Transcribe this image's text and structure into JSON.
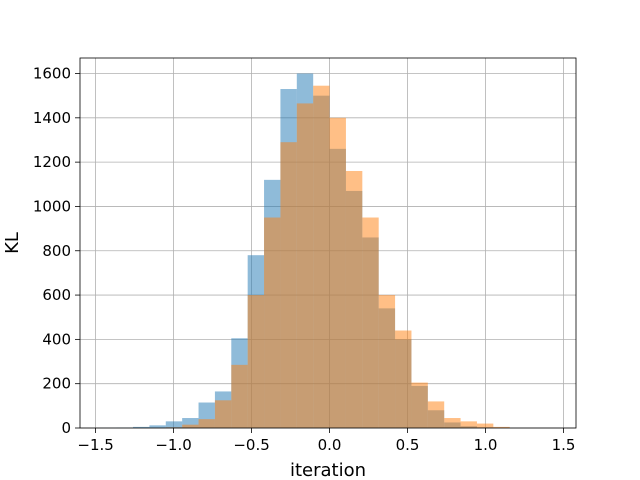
{
  "chart_data": {
    "type": "bar",
    "xlabel": "iteration",
    "ylabel": "KL",
    "title": "",
    "xlim": [
      -1.6,
      1.58
    ],
    "ylim": [
      0,
      1670
    ],
    "xticks": [
      -1.5,
      -1.0,
      -0.5,
      0.0,
      0.5,
      1.0,
      1.5
    ],
    "xtick_labels": [
      "−1.5",
      "−1.0",
      "−0.5",
      "0.0",
      "0.5",
      "1.0",
      "1.5"
    ],
    "yticks": [
      0,
      200,
      400,
      600,
      800,
      1000,
      1200,
      1400,
      1600
    ],
    "ytick_labels": [
      "0",
      "200",
      "400",
      "600",
      "800",
      "1000",
      "1200",
      "1400",
      "1600"
    ],
    "grid": true,
    "series": [
      {
        "color": "#1f77b4",
        "opacity": 0.5,
        "bin_edges": [
          -1.47,
          -1.365,
          -1.26,
          -1.155,
          -1.05,
          -0.945,
          -0.84,
          -0.735,
          -0.63,
          -0.525,
          -0.42,
          -0.315,
          -0.21,
          -0.105,
          0.0,
          0.105,
          0.21,
          0.315,
          0.42,
          0.525,
          0.63,
          0.735,
          0.84,
          0.945,
          1.05,
          1.155,
          1.26,
          1.365
        ],
        "counts": [
          1,
          2,
          5,
          12,
          30,
          45,
          115,
          165,
          405,
          780,
          1120,
          1530,
          1600,
          1500,
          1260,
          1070,
          860,
          540,
          400,
          190,
          80,
          25,
          8,
          3,
          1,
          0,
          0
        ]
      },
      {
        "color": "#ff7f0e",
        "opacity": 0.5,
        "bin_edges": [
          -1.05,
          -0.945,
          -0.84,
          -0.735,
          -0.63,
          -0.525,
          -0.42,
          -0.315,
          -0.21,
          -0.105,
          0.0,
          0.105,
          0.21,
          0.315,
          0.42,
          0.525,
          0.63,
          0.735,
          0.84,
          0.945,
          1.05,
          1.155
        ],
        "counts": [
          3,
          15,
          40,
          125,
          285,
          600,
          950,
          1290,
          1465,
          1545,
          1400,
          1160,
          950,
          600,
          440,
          205,
          120,
          45,
          30,
          20,
          5
        ]
      }
    ]
  }
}
